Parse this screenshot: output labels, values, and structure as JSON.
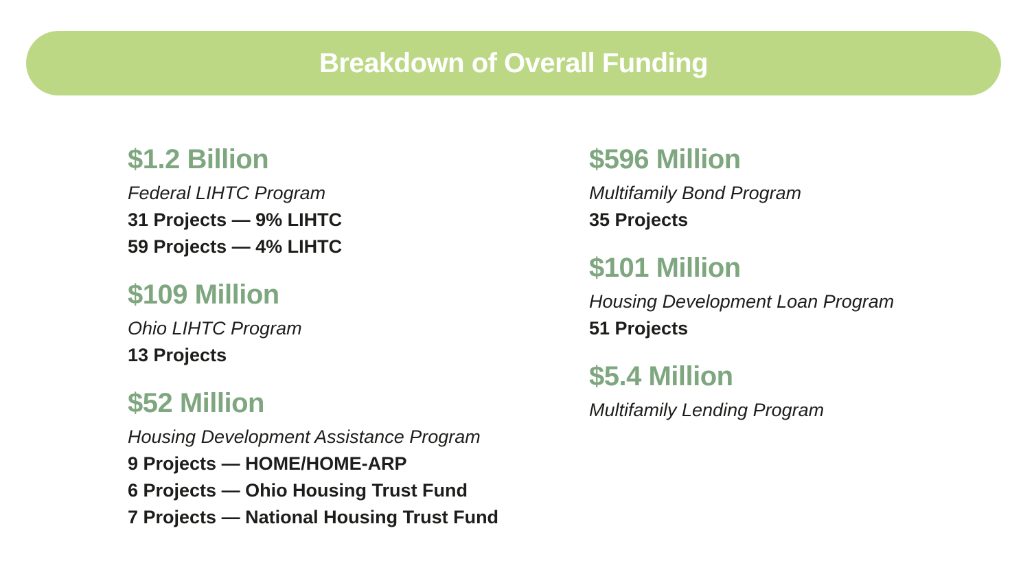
{
  "header": {
    "title": "Breakdown of Overall Funding"
  },
  "colors": {
    "background": "#FFFFFF",
    "banner_green": "#BCD885",
    "amount_green": "#7EA67F",
    "title_white": "#FFFFFF",
    "text_black": "#1D1D1B"
  },
  "columns": {
    "left": [
      {
        "amount": "$1.2 Billion",
        "program": "Federal LIHTC Program",
        "details": [
          "31 Projects — 9% LIHTC",
          "59 Projects — 4% LIHTC"
        ]
      },
      {
        "amount": "$109 Million",
        "program": "Ohio LIHTC Program",
        "details": [
          "13 Projects"
        ]
      },
      {
        "amount": "$52 Million",
        "program": "Housing Development Assistance Program",
        "details": [
          "9 Projects — HOME/HOME-ARP",
          "6 Projects — Ohio Housing Trust Fund",
          "7 Projects — National Housing Trust Fund"
        ]
      }
    ],
    "right": [
      {
        "amount": "$596 Million",
        "program": "Multifamily Bond Program",
        "details": [
          "35 Projects"
        ]
      },
      {
        "amount": "$101 Million",
        "program": "Housing Development Loan Program",
        "details": [
          "51 Projects"
        ]
      },
      {
        "amount": "$5.4 Million",
        "program": "Multifamily Lending Program",
        "details": []
      }
    ]
  }
}
